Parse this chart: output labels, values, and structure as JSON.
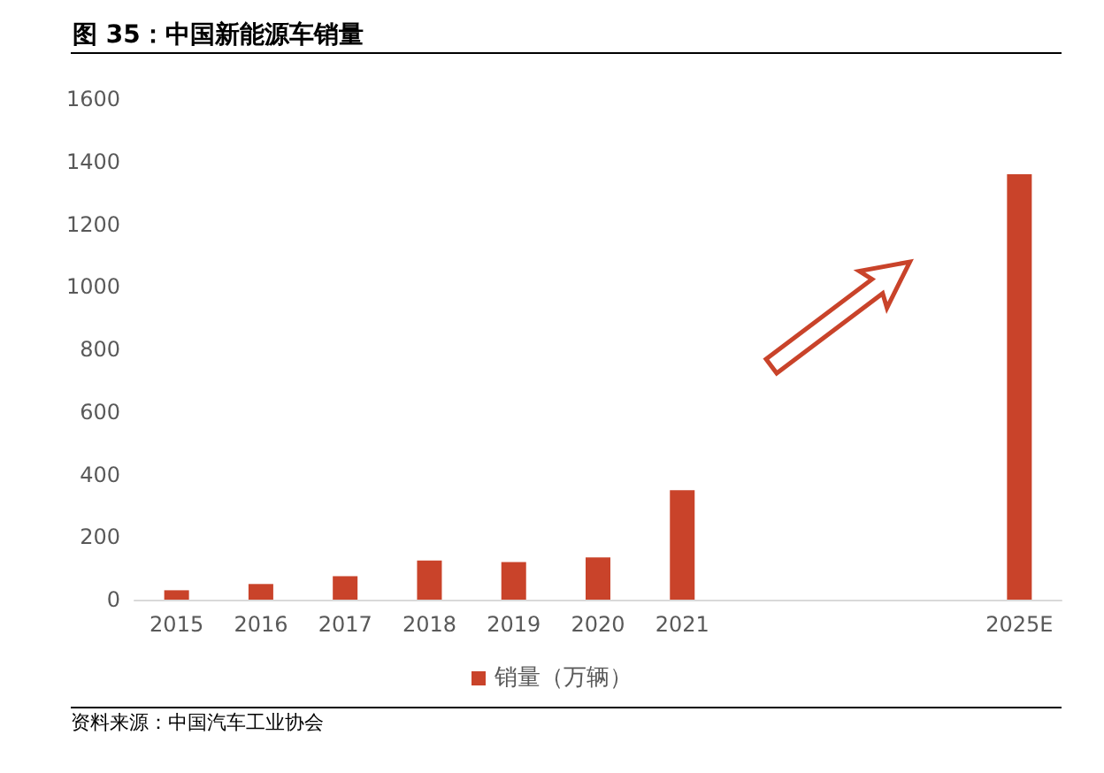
{
  "chart_data": {
    "type": "bar",
    "title": "图 35：中国新能源车销量",
    "categories": [
      "2015",
      "2016",
      "2017",
      "2018",
      "2019",
      "2020",
      "2021",
      null,
      null,
      null,
      "2025E"
    ],
    "series": [
      {
        "name": "销量（万辆）",
        "color": "#c9432a",
        "values": [
          30,
          50,
          75,
          125,
          120,
          135,
          350,
          null,
          null,
          null,
          1360
        ]
      }
    ],
    "ylim": [
      0,
      1600
    ],
    "yticks": [
      0,
      200,
      400,
      600,
      800,
      1000,
      1200,
      1400,
      1600
    ],
    "grid": false,
    "legend": "bottom",
    "annotations": [
      "资料来源：中国汽车工业协会"
    ]
  }
}
